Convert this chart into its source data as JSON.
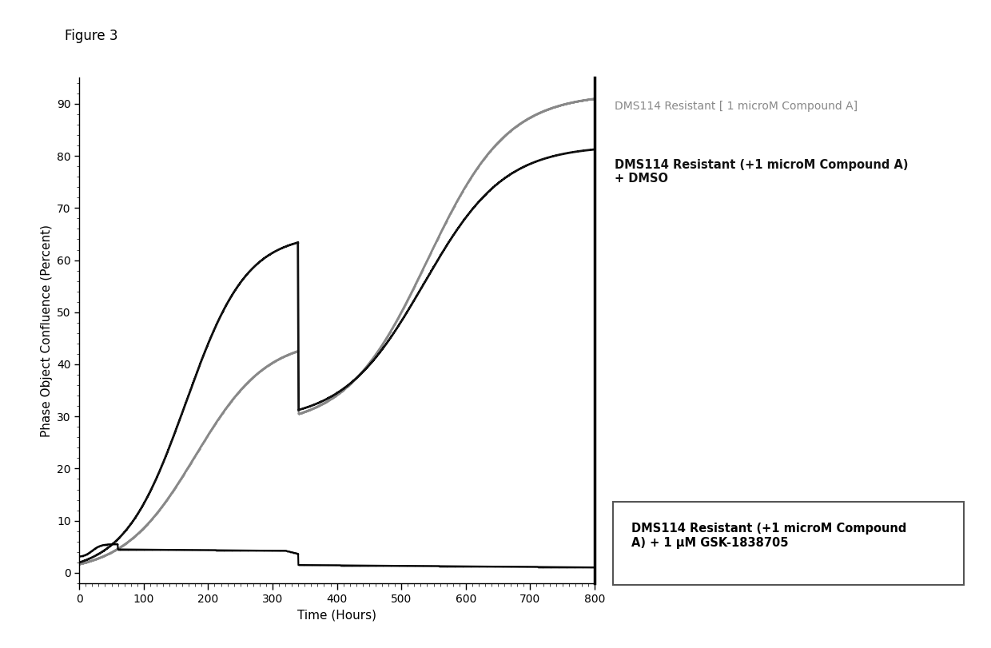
{
  "title": "Figure 3",
  "xlabel": "Time (Hours)",
  "ylabel": "Phase Object Confluence (Percent)",
  "xlim": [
    0,
    800
  ],
  "ylim": [
    -2,
    95
  ],
  "xticks": [
    0,
    100,
    200,
    300,
    400,
    500,
    600,
    700,
    800
  ],
  "yticks": [
    0,
    10,
    20,
    30,
    40,
    50,
    60,
    70,
    80,
    90
  ],
  "legend1_label": "DMS114 Resistant [ 1 microM Compound A]",
  "legend2_label": "DMS114 Resistant (+1 microM Compound A)\n+ DMSO",
  "legend3_label": "DMS114 Resistant (+1 microM Compound\nA) + 1 μM GSK-1838705",
  "color_gray": "#888888",
  "color_black": "#111111",
  "color_flat": "#000000",
  "passage_time": 340
}
